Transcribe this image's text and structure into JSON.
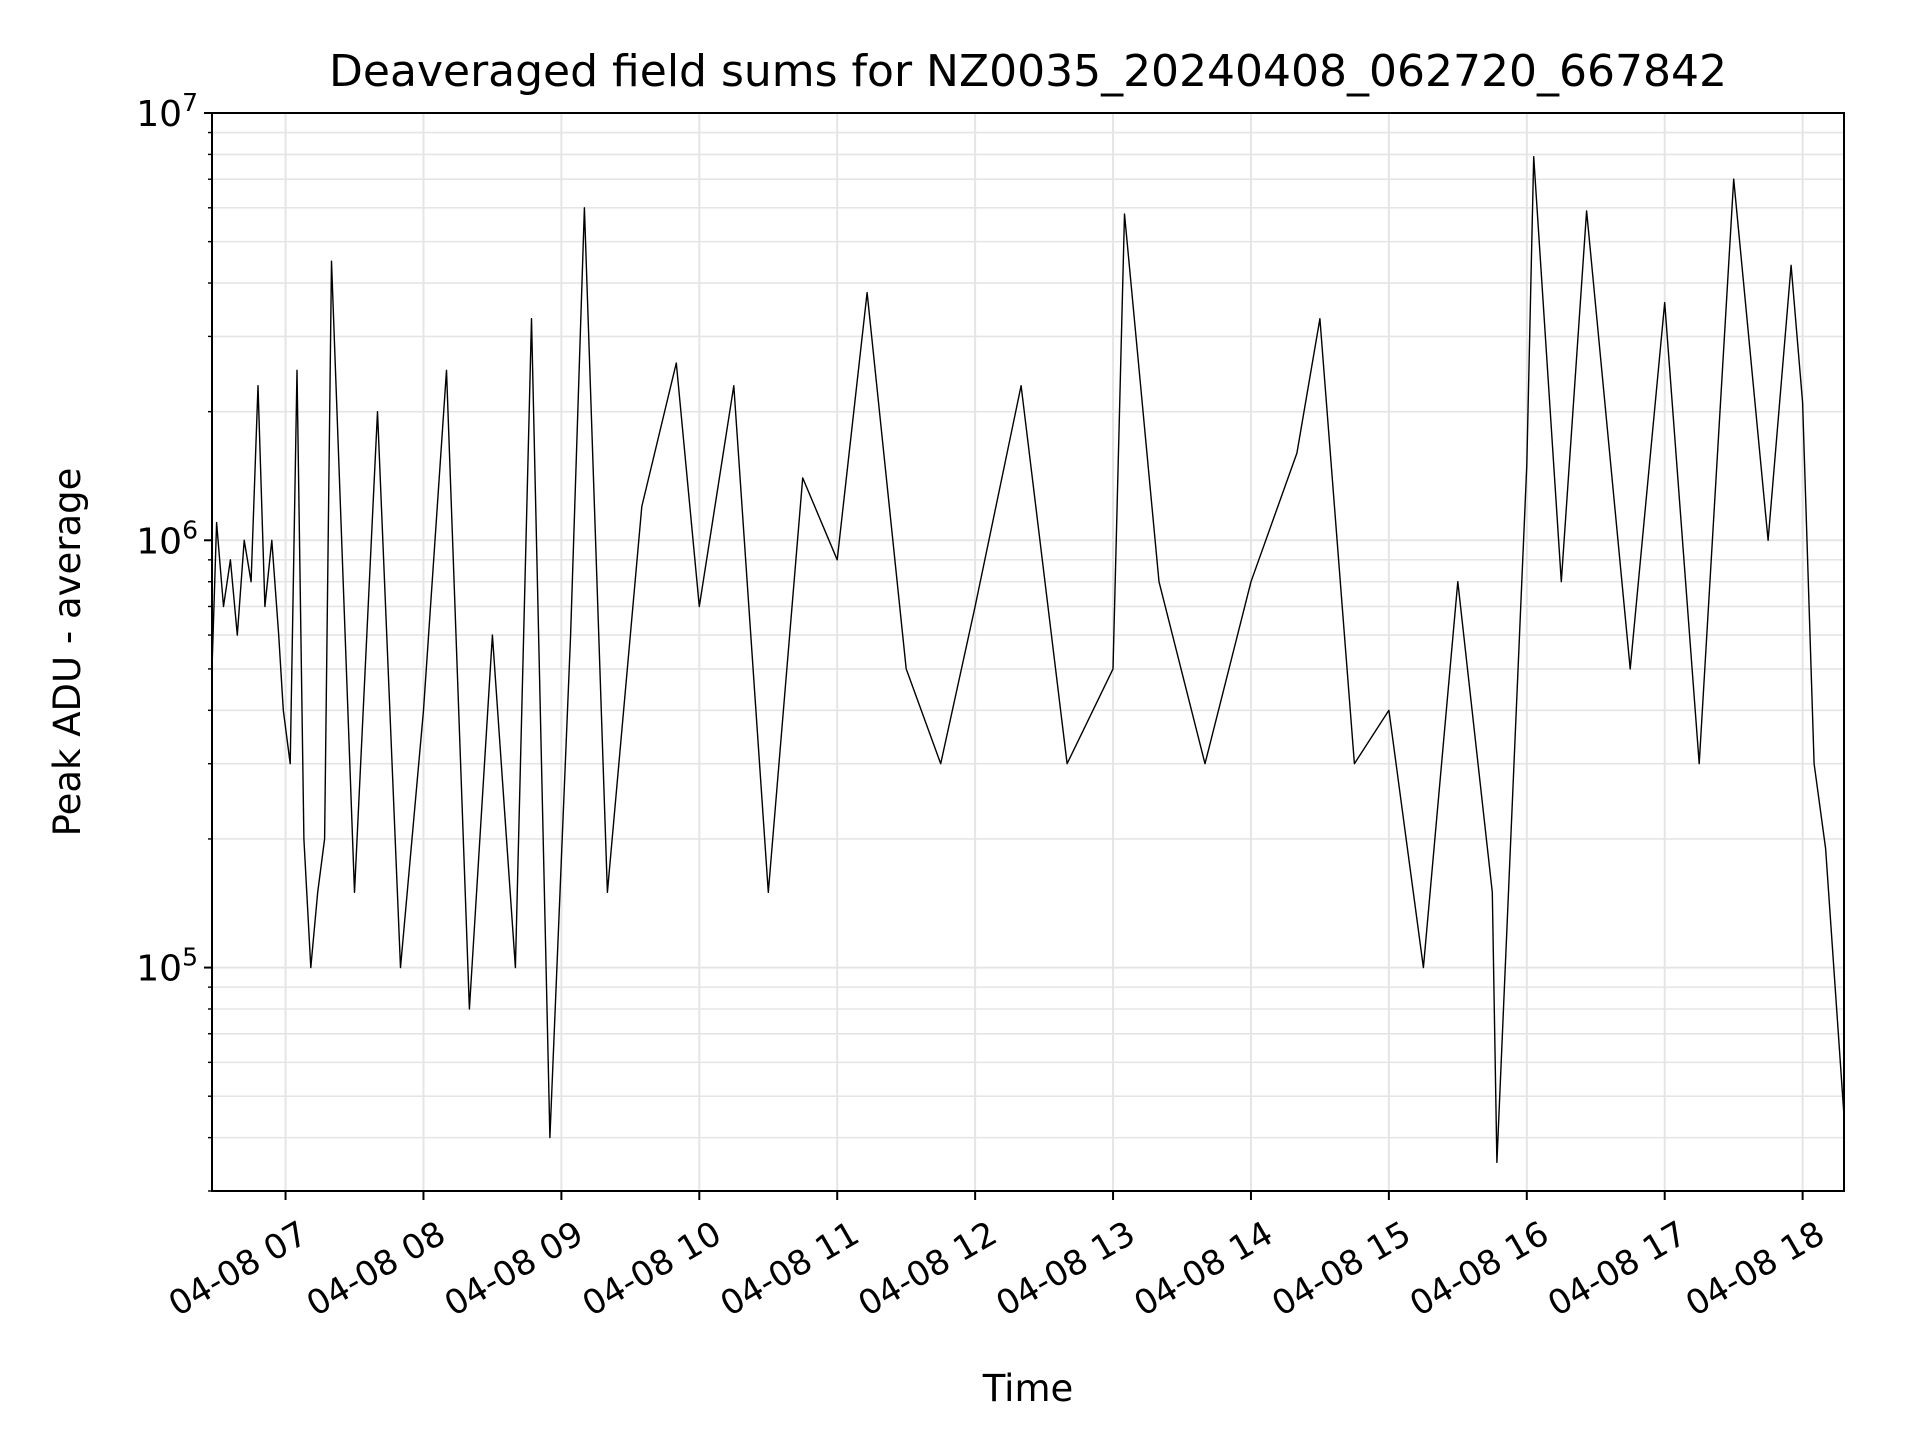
{
  "chart_data": {
    "type": "line",
    "title": "Deaveraged field sums for NZ0035_20240408_062720_667842",
    "xlabel": "Time",
    "ylabel": "Peak ADU - average",
    "x_scale": "time",
    "y_scale": "log",
    "xlim": [
      "2024-04-08 06:28",
      "2024-04-08 18:18"
    ],
    "ylim": [
      30000,
      10000000
    ],
    "grid": true,
    "grid_color": "#e5e5e5",
    "line_color": "#000000",
    "x_tick_values": [
      "2024-04-08 07:00",
      "2024-04-08 08:00",
      "2024-04-08 09:00",
      "2024-04-08 10:00",
      "2024-04-08 11:00",
      "2024-04-08 12:00",
      "2024-04-08 13:00",
      "2024-04-08 14:00",
      "2024-04-08 15:00",
      "2024-04-08 16:00",
      "2024-04-08 17:00",
      "2024-04-08 18:00"
    ],
    "x_tick_labels": [
      "04-08 07",
      "04-08 08",
      "04-08 09",
      "04-08 10",
      "04-08 11",
      "04-08 12",
      "04-08 13",
      "04-08 14",
      "04-08 15",
      "04-08 16",
      "04-08 17",
      "04-08 18"
    ],
    "y_tick_values": [
      100000,
      1000000,
      10000000
    ],
    "y_tick_labels": [
      {
        "base": "10",
        "exp": "5"
      },
      {
        "base": "10",
        "exp": "6"
      },
      {
        "base": "10",
        "exp": "7"
      }
    ],
    "series": [
      {
        "x": [
          "2024-04-08 06:28",
          "2024-04-08 06:30",
          "2024-04-08 06:33",
          "2024-04-08 06:36",
          "2024-04-08 06:39",
          "2024-04-08 06:42",
          "2024-04-08 06:45",
          "2024-04-08 06:48",
          "2024-04-08 06:51",
          "2024-04-08 06:54",
          "2024-04-08 06:57",
          "2024-04-08 06:59",
          "2024-04-08 07:02",
          "2024-04-08 07:05",
          "2024-04-08 07:08",
          "2024-04-08 07:11",
          "2024-04-08 07:14",
          "2024-04-08 07:17",
          "2024-04-08 07:20",
          "2024-04-08 07:30",
          "2024-04-08 07:40",
          "2024-04-08 07:50",
          "2024-04-08 08:00",
          "2024-04-08 08:10",
          "2024-04-08 08:20",
          "2024-04-08 08:30",
          "2024-04-08 08:40",
          "2024-04-08 08:47",
          "2024-04-08 08:55",
          "2024-04-08 09:04",
          "2024-04-08 09:10",
          "2024-04-08 09:20",
          "2024-04-08 09:35",
          "2024-04-08 09:50",
          "2024-04-08 10:00",
          "2024-04-08 10:15",
          "2024-04-08 10:30",
          "2024-04-08 10:45",
          "2024-04-08 11:00",
          "2024-04-08 11:13",
          "2024-04-08 11:30",
          "2024-04-08 11:45",
          "2024-04-08 12:00",
          "2024-04-08 12:20",
          "2024-04-08 12:40",
          "2024-04-08 13:00",
          "2024-04-08 13:05",
          "2024-04-08 13:20",
          "2024-04-08 13:40",
          "2024-04-08 14:00",
          "2024-04-08 14:20",
          "2024-04-08 14:30",
          "2024-04-08 14:45",
          "2024-04-08 15:00",
          "2024-04-08 15:15",
          "2024-04-08 15:30",
          "2024-04-08 15:45",
          "2024-04-08 15:47",
          "2024-04-08 16:00",
          "2024-04-08 16:03",
          "2024-04-08 16:15",
          "2024-04-08 16:26",
          "2024-04-08 16:45",
          "2024-04-08 17:00",
          "2024-04-08 17:15",
          "2024-04-08 17:30",
          "2024-04-08 17:45",
          "2024-04-08 17:55",
          "2024-04-08 18:00",
          "2024-04-08 18:05",
          "2024-04-08 18:10",
          "2024-04-08 18:18"
        ],
        "y": [
          500000,
          1100000,
          700000,
          900000,
          600000,
          1000000,
          800000,
          2300000,
          700000,
          1000000,
          600000,
          400000,
          300000,
          2500000,
          200000,
          100000,
          150000,
          200000,
          4500000,
          150000,
          2000000,
          100000,
          400000,
          2500000,
          80000,
          600000,
          100000,
          3300000,
          40000,
          600000,
          6000000,
          150000,
          1200000,
          2600000,
          700000,
          2300000,
          150000,
          1400000,
          900000,
          3800000,
          500000,
          300000,
          700000,
          2300000,
          300000,
          500000,
          5800000,
          800000,
          300000,
          800000,
          1600000,
          3300000,
          300000,
          400000,
          100000,
          800000,
          150000,
          35000,
          1500000,
          7900000,
          800000,
          5900000,
          500000,
          3600000,
          300000,
          7000000,
          1000000,
          4400000,
          2100000,
          300000,
          190000,
          45000
        ]
      }
    ]
  }
}
